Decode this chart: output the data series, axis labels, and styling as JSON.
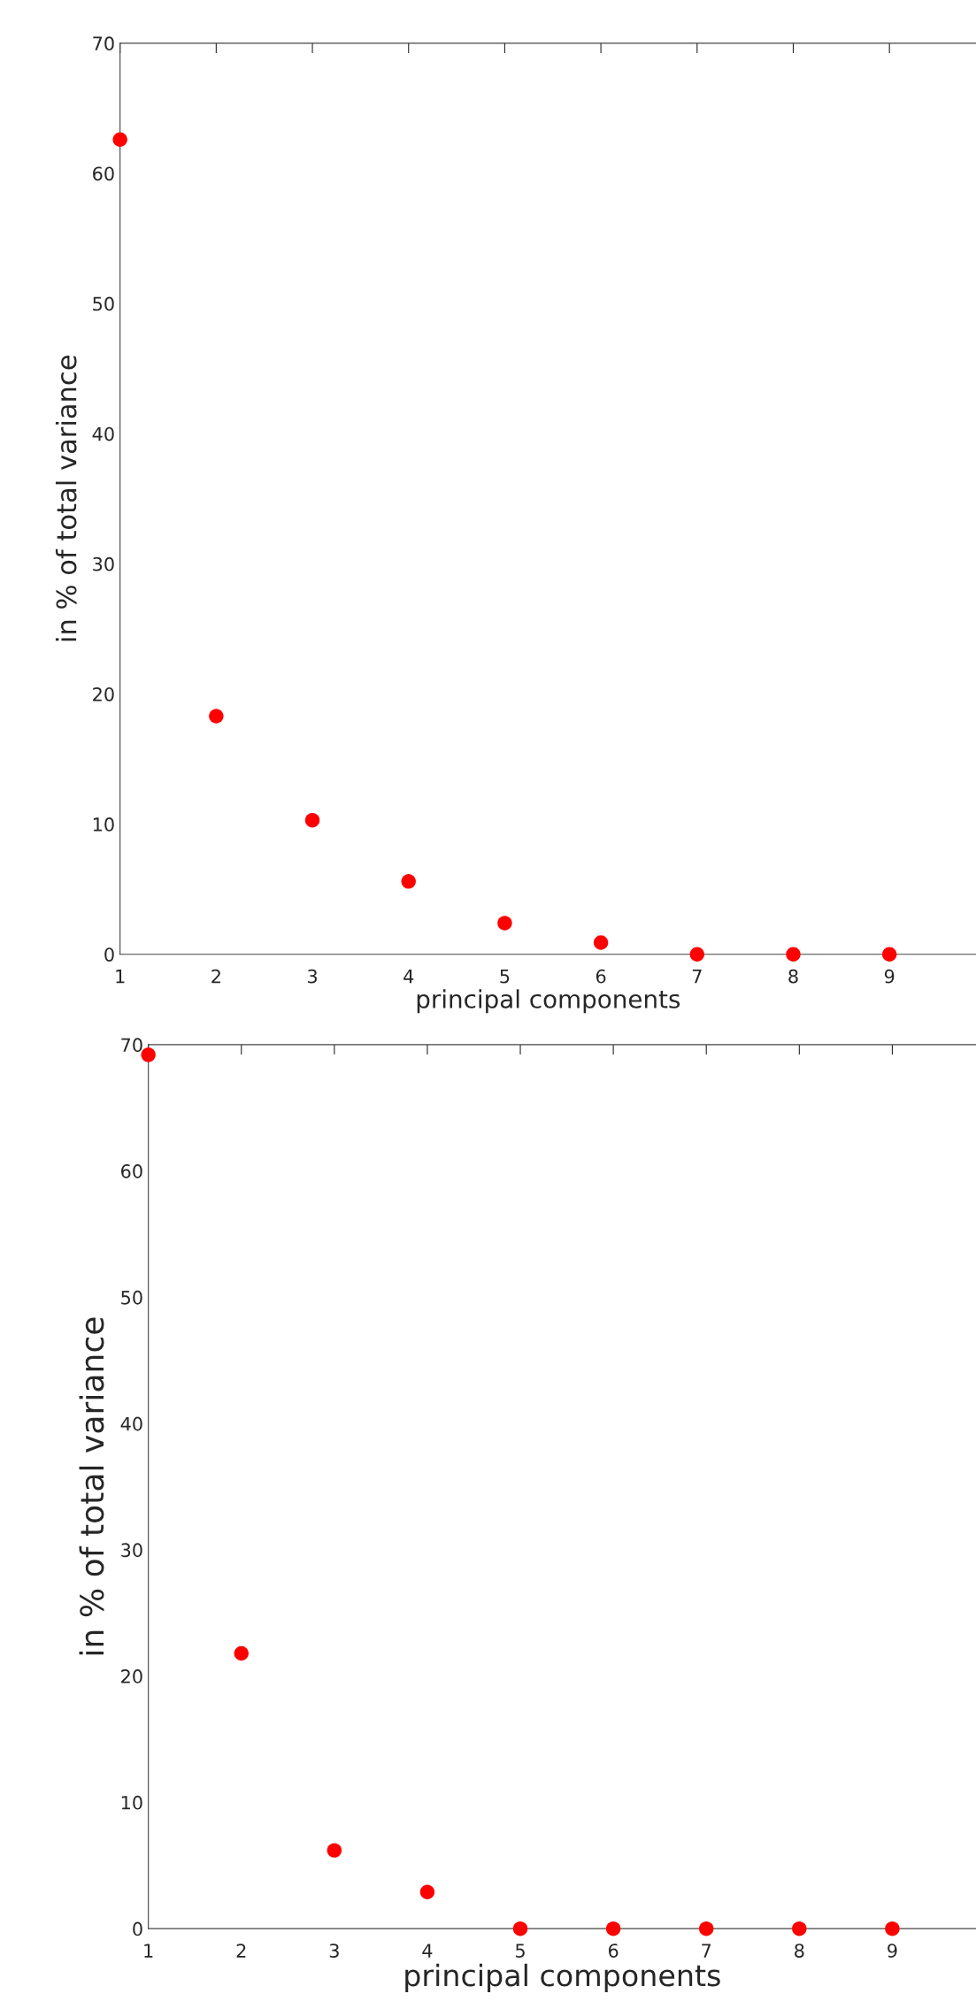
{
  "chart_data": [
    {
      "type": "scatter",
      "xlabel": "principal components",
      "ylabel": "in % of total variance",
      "x": [
        1,
        2,
        3,
        4,
        5,
        6,
        7,
        8,
        9
      ],
      "xlim": [
        1,
        9.9
      ],
      "xticks": [
        1,
        2,
        3,
        4,
        5,
        6,
        7,
        8,
        9
      ],
      "ylim": [
        0,
        70
      ],
      "yticks": [
        0,
        10,
        20,
        30,
        40,
        50,
        60,
        70
      ],
      "marker": "circle",
      "grid": false,
      "legend": false,
      "series": [
        {
          "color": "#ff0000",
          "values": [
            62.6,
            18.3,
            10.3,
            5.6,
            2.4,
            0.9,
            0,
            0,
            0
          ]
        }
      ]
    },
    {
      "type": "scatter",
      "xlabel": "principal components",
      "ylabel": "in % of total variance",
      "x": [
        1,
        2,
        3,
        4,
        5,
        6,
        7,
        8,
        9
      ],
      "xlim": [
        1,
        9.9
      ],
      "xticks": [
        1,
        2,
        3,
        4,
        5,
        6,
        7,
        8,
        9
      ],
      "ylim": [
        0,
        70
      ],
      "yticks": [
        0,
        10,
        20,
        30,
        40,
        50,
        60,
        70
      ],
      "marker": "circle",
      "grid": false,
      "legend": false,
      "series": [
        {
          "color": "#ff0000",
          "values": [
            69.2,
            21.8,
            6.2,
            2.9,
            0,
            0,
            0,
            0,
            0
          ]
        }
      ]
    }
  ]
}
